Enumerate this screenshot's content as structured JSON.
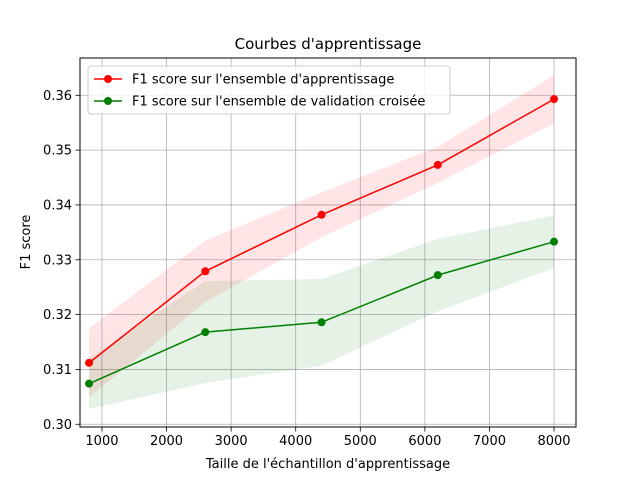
{
  "chart_data": {
    "type": "line",
    "title": "Courbes d'apprentissage",
    "xlabel": "Taille de l'échantillon d'apprentissage",
    "ylabel": "F1 score",
    "xlim": [
      660,
      8340
    ],
    "ylim": [
      0.2995,
      0.3668
    ],
    "xticks": [
      1000,
      2000,
      3000,
      4000,
      5000,
      6000,
      7000,
      8000
    ],
    "yticks": [
      0.3,
      0.31,
      0.32,
      0.33,
      0.34,
      0.35,
      0.36
    ],
    "xtick_labels": [
      "1000",
      "2000",
      "3000",
      "4000",
      "5000",
      "6000",
      "7000",
      "8000"
    ],
    "ytick_labels": [
      "0.30",
      "0.31",
      "0.32",
      "0.33",
      "0.34",
      "0.35",
      "0.36"
    ],
    "grid": true,
    "legend_position": "top-left",
    "x": [
      800,
      2600,
      4400,
      6200,
      8000
    ],
    "series": [
      {
        "name": "F1 score sur l'ensemble d'apprentissage",
        "color": "#ff0000",
        "values": [
          0.3112,
          0.3279,
          0.3382,
          0.3473,
          0.3593
        ],
        "band_upper": [
          0.3175,
          0.3335,
          0.3423,
          0.3506,
          0.3637
        ],
        "band_lower": [
          0.3049,
          0.3223,
          0.3341,
          0.344,
          0.3549
        ]
      },
      {
        "name": "F1 score sur l'ensemble de validation croisée",
        "color": "#008000",
        "values": [
          0.3074,
          0.3168,
          0.3186,
          0.3272,
          0.3333
        ],
        "band_upper": [
          0.312,
          0.3261,
          0.3265,
          0.3338,
          0.3381
        ],
        "band_lower": [
          0.3028,
          0.3075,
          0.3107,
          0.3206,
          0.3285
        ]
      }
    ]
  }
}
